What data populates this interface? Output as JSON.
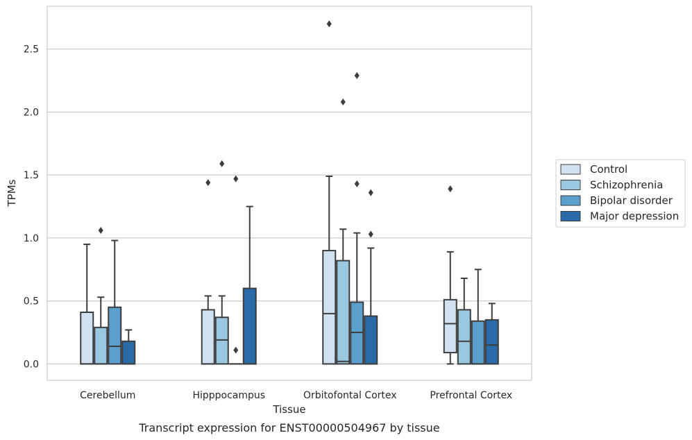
{
  "caption": "Transcript expression for ENST00000504967 by tissue",
  "chart_data": {
    "type": "box",
    "xlabel": "Tissue",
    "ylabel": "TPMs",
    "ylim": [
      -0.13,
      2.84
    ],
    "yticks": [
      "0.0",
      "0.5",
      "1.0",
      "1.5",
      "2.0",
      "2.5"
    ],
    "grid": "horizontal",
    "legend_position": "right",
    "categories": [
      "Cerebellum",
      "Hipppocampus",
      "Orbitofontal Cortex",
      "Prefrontal Cortex"
    ],
    "series": [
      {
        "name": "Control",
        "color": "#d0e1f2",
        "boxes": [
          {
            "q1": 0.0,
            "median": 0.0,
            "q3": 0.41,
            "whislo": 0.0,
            "whishi": 0.95,
            "fliers": []
          },
          {
            "q1": 0.0,
            "median": 0.0,
            "q3": 0.43,
            "whislo": 0.0,
            "whishi": 0.54,
            "fliers": [
              1.44
            ]
          },
          {
            "q1": 0.0,
            "median": 0.4,
            "q3": 0.9,
            "whislo": 0.0,
            "whishi": 1.49,
            "fliers": [
              2.7
            ]
          },
          {
            "q1": 0.09,
            "median": 0.32,
            "q3": 0.51,
            "whislo": 0.0,
            "whishi": 0.89,
            "fliers": [
              1.39
            ]
          }
        ]
      },
      {
        "name": "Schizophrenia",
        "color": "#9ac8e0",
        "boxes": [
          {
            "q1": 0.0,
            "median": 0.0,
            "q3": 0.29,
            "whislo": 0.0,
            "whishi": 0.53,
            "fliers": [
              1.06
            ]
          },
          {
            "q1": 0.0,
            "median": 0.19,
            "q3": 0.37,
            "whislo": 0.0,
            "whishi": 0.54,
            "fliers": [
              1.59
            ]
          },
          {
            "q1": 0.0,
            "median": 0.02,
            "q3": 0.82,
            "whislo": 0.0,
            "whishi": 1.07,
            "fliers": [
              2.08
            ]
          },
          {
            "q1": 0.0,
            "median": 0.18,
            "q3": 0.43,
            "whislo": 0.0,
            "whishi": 0.68,
            "fliers": []
          }
        ]
      },
      {
        "name": "Bipolar disorder",
        "color": "#5b9fcd",
        "boxes": [
          {
            "q1": 0.0,
            "median": 0.14,
            "q3": 0.45,
            "whislo": 0.0,
            "whishi": 0.98,
            "fliers": []
          },
          {
            "q1": 0.0,
            "median": 0.0,
            "q3": 0.0,
            "whislo": 0.0,
            "whishi": 0.0,
            "fliers": [
              0.11,
              1.47
            ]
          },
          {
            "q1": 0.0,
            "median": 0.25,
            "q3": 0.49,
            "whislo": 0.0,
            "whishi": 1.04,
            "fliers": [
              1.43,
              2.29
            ]
          },
          {
            "q1": 0.0,
            "median": 0.0,
            "q3": 0.34,
            "whislo": 0.0,
            "whishi": 0.75,
            "fliers": []
          }
        ]
      },
      {
        "name": "Major depression",
        "color": "#2b6aa8",
        "boxes": [
          {
            "q1": 0.0,
            "median": 0.0,
            "q3": 0.18,
            "whislo": 0.0,
            "whishi": 0.27,
            "fliers": []
          },
          {
            "q1": 0.0,
            "median": 0.0,
            "q3": 0.6,
            "whislo": 0.0,
            "whishi": 1.25,
            "fliers": []
          },
          {
            "q1": 0.0,
            "median": 0.0,
            "q3": 0.38,
            "whislo": 0.0,
            "whishi": 0.92,
            "fliers": [
              1.03,
              1.36
            ]
          },
          {
            "q1": 0.0,
            "median": 0.15,
            "q3": 0.35,
            "whislo": 0.0,
            "whishi": 0.48,
            "fliers": []
          }
        ]
      }
    ]
  }
}
